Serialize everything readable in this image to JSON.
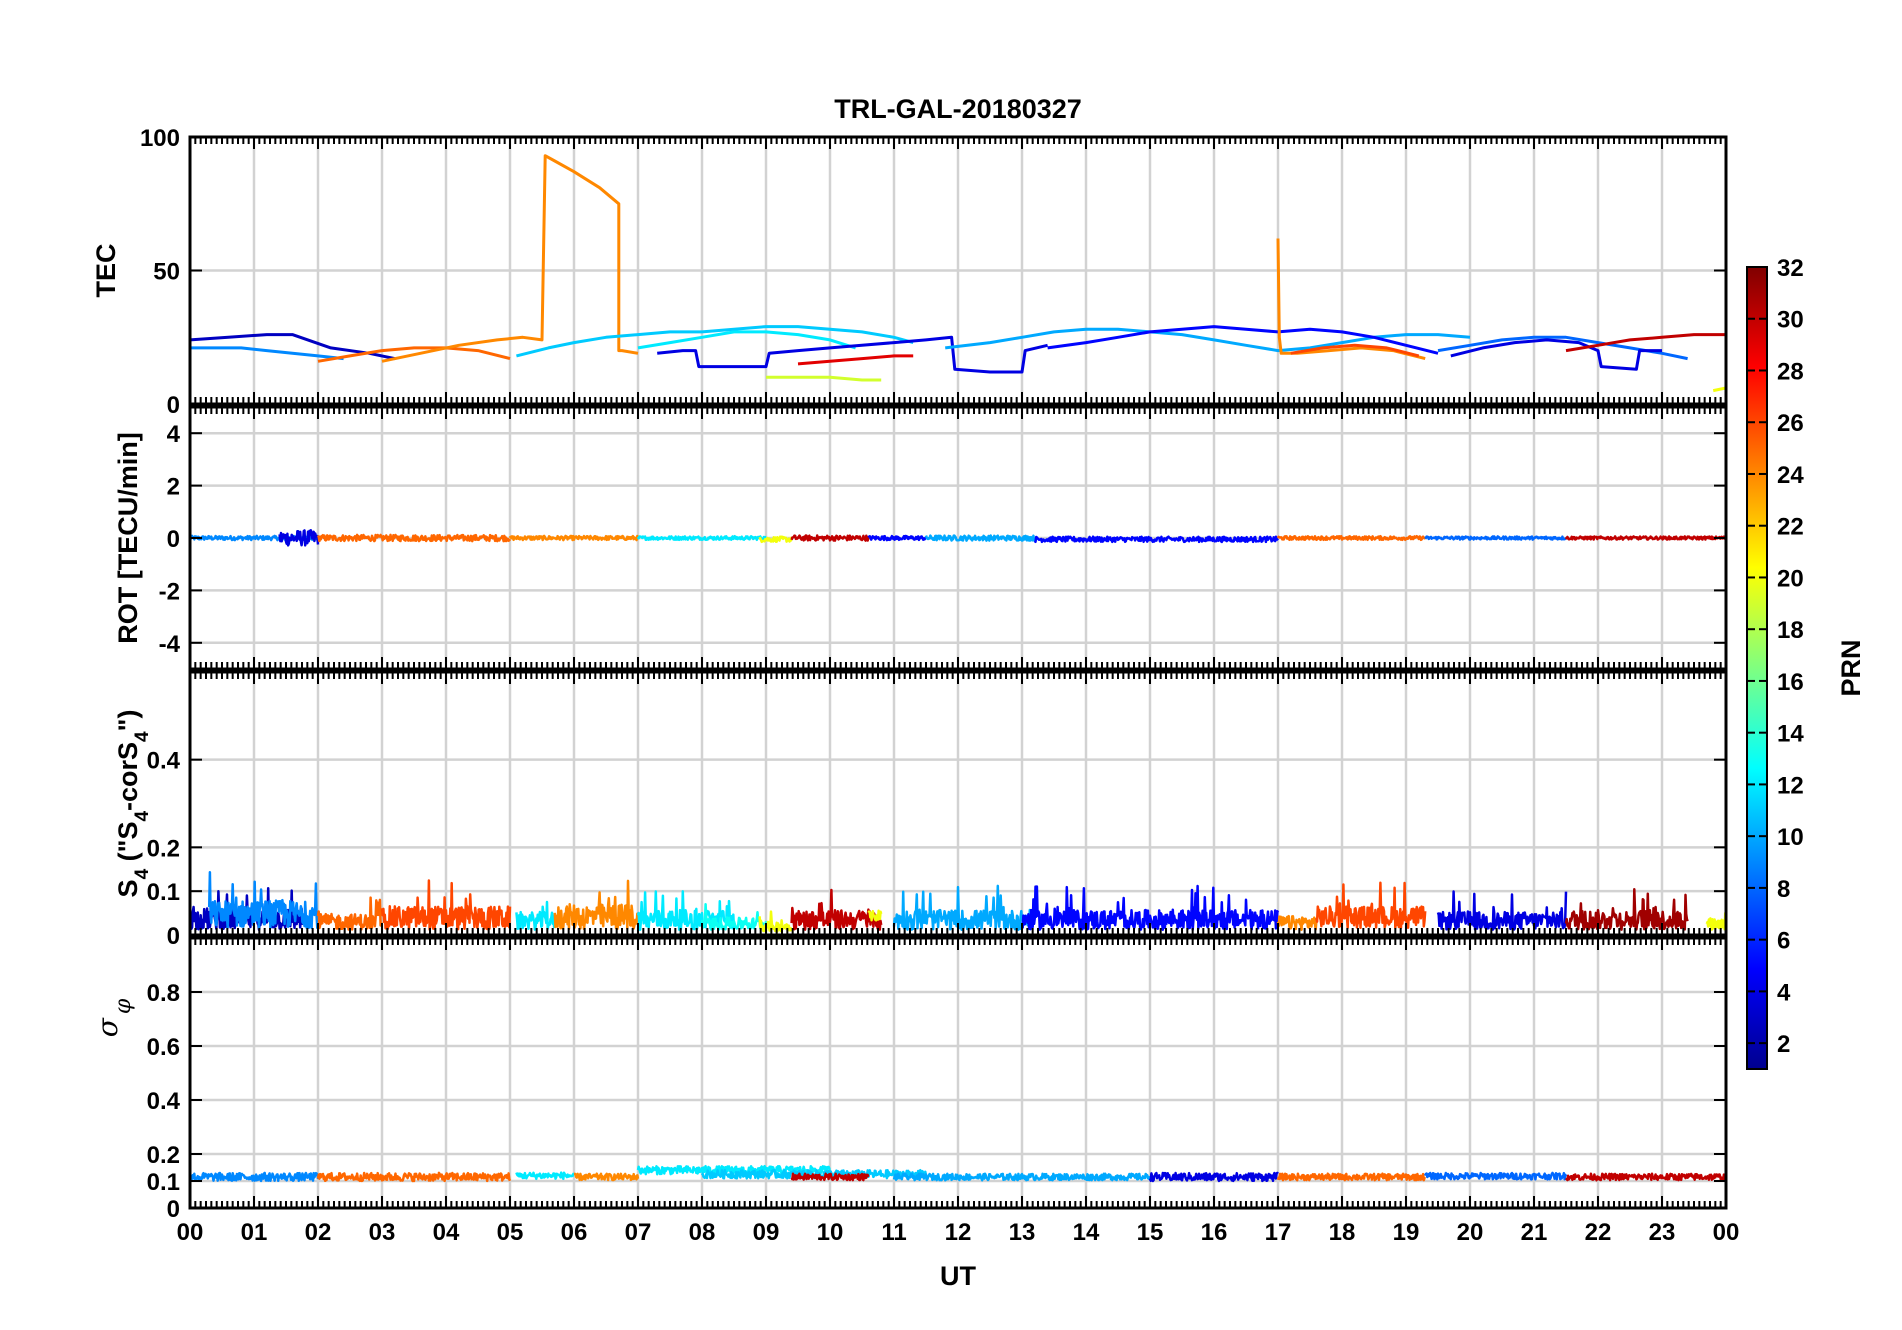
{
  "chart_data": {
    "type": "line",
    "title": "TRL-GAL-20180327",
    "xlabel": "UT",
    "x_ticks": [
      "00",
      "01",
      "02",
      "03",
      "04",
      "05",
      "06",
      "07",
      "08",
      "09",
      "10",
      "11",
      "12",
      "13",
      "14",
      "15",
      "16",
      "17",
      "18",
      "19",
      "20",
      "21",
      "22",
      "23",
      "00"
    ],
    "xlim": [
      0,
      24
    ],
    "colorbar": {
      "label": "PRN",
      "range": [
        1,
        32
      ],
      "ticks": [
        2,
        4,
        6,
        8,
        10,
        12,
        14,
        16,
        18,
        20,
        22,
        24,
        26,
        28,
        30,
        32
      ],
      "colormap": "jet"
    },
    "panels": [
      {
        "id": "tec",
        "ylabel": "TEC",
        "ylim": [
          0,
          100
        ],
        "yticks": [
          0,
          50,
          100
        ],
        "series": [
          {
            "prn": 3,
            "x": [
              0.0,
              0.6,
              1.2,
              1.6,
              2.2,
              2.8,
              3.2
            ],
            "y": [
              24,
              25,
              26,
              26,
              21,
              19,
              17
            ]
          },
          {
            "prn": 9,
            "x": [
              0.0,
              0.4,
              0.8,
              1.2,
              1.6,
              2.0,
              2.4
            ],
            "y": [
              21,
              21,
              21,
              20,
              19,
              18,
              17
            ]
          },
          {
            "prn": 25,
            "x": [
              2.0,
              2.5,
              3.0,
              3.5,
              4.0,
              4.5,
              5.0
            ],
            "y": [
              16,
              18,
              20,
              21,
              21,
              20,
              17
            ]
          },
          {
            "prn": 24,
            "x": [
              3.0,
              3.6,
              4.2,
              4.8,
              5.2,
              5.5,
              5.55,
              5.7,
              6.0,
              6.4,
              6.7,
              6.7,
              6.75,
              7.0
            ],
            "y": [
              16,
              19,
              22,
              24,
              25,
              24,
              93,
              91,
              87,
              81,
              75,
              20,
              20,
              19
            ]
          },
          {
            "prn": 11,
            "x": [
              5.1,
              5.6,
              6.0,
              6.5,
              7.0,
              7.5,
              8.0,
              8.5,
              9.0,
              9.5,
              10.0,
              10.5,
              11.0,
              11.3
            ],
            "y": [
              18,
              21,
              23,
              25,
              26,
              27,
              27,
              28,
              29,
              29,
              28,
              27,
              25,
              23
            ]
          },
          {
            "prn": 12,
            "x": [
              7.0,
              7.5,
              8.0,
              8.5,
              9.0,
              9.5,
              10.0,
              10.4
            ],
            "y": [
              21,
              23,
              25,
              27,
              27,
              26,
              24,
              21
            ]
          },
          {
            "prn": 4,
            "x": [
              7.3,
              7.7,
              7.9,
              7.95,
              8.5,
              9.0,
              9.05,
              9.5,
              10.0,
              10.5,
              11.0,
              11.5,
              11.9,
              11.95,
              12.5,
              13.0,
              13.05,
              13.4
            ],
            "y": [
              19,
              20,
              20,
              14,
              14,
              14,
              19,
              20,
              21,
              22,
              23,
              24,
              25,
              13,
              12,
              12,
              20,
              22
            ]
          },
          {
            "prn": 19,
            "x": [
              9.0,
              9.5,
              10.0,
              10.5,
              10.8
            ],
            "y": [
              10,
              10,
              10,
              9,
              9
            ]
          },
          {
            "prn": 29,
            "x": [
              9.5,
              10.0,
              10.5,
              11.0,
              11.3
            ],
            "y": [
              15,
              16,
              17,
              18,
              18
            ]
          },
          {
            "prn": 10,
            "x": [
              11.8,
              12.5,
              13.0,
              13.5,
              14.0,
              14.5,
              15.0,
              15.5,
              16.0,
              16.5,
              17.0,
              17.5,
              18.0,
              18.5,
              19.0,
              19.5,
              20.0
            ],
            "y": [
              21,
              23,
              25,
              27,
              28,
              28,
              27,
              26,
              24,
              22,
              20,
              21,
              23,
              25,
              26,
              26,
              25
            ]
          },
          {
            "prn": 5,
            "x": [
              13.4,
              14.0,
              14.5,
              15.0,
              15.5,
              16.0,
              16.5,
              17.0,
              17.5,
              18.0,
              18.5,
              19.0,
              19.5
            ],
            "y": [
              21,
              23,
              25,
              27,
              28,
              29,
              28,
              27,
              28,
              27,
              25,
              22,
              19
            ]
          },
          {
            "prn": 24,
            "x": [
              17.0,
              17.02,
              17.05,
              17.3,
              17.8,
              18.3,
              18.8,
              19.3
            ],
            "y": [
              62,
              25,
              19,
              19,
              20,
              21,
              20,
              17
            ]
          },
          {
            "prn": 26,
            "x": [
              17.2,
              17.7,
              18.2,
              18.7,
              19.2
            ],
            "y": [
              19,
              21,
              22,
              21,
              18
            ]
          },
          {
            "prn": 8,
            "x": [
              19.5,
              20.0,
              20.5,
              21.0,
              21.5,
              22.0,
              22.5,
              23.0,
              23.4
            ],
            "y": [
              20,
              22,
              24,
              25,
              25,
              23,
              21,
              19,
              17
            ]
          },
          {
            "prn": 4,
            "x": [
              19.7,
              20.2,
              20.7,
              21.2,
              21.7,
              22.0,
              22.05,
              22.6,
              22.65,
              23.0
            ],
            "y": [
              18,
              21,
              23,
              24,
              23,
              20,
              14,
              13,
              20,
              20
            ]
          },
          {
            "prn": 30,
            "x": [
              21.5,
              22.0,
              22.5,
              23.0,
              23.5,
              24.0
            ],
            "y": [
              20,
              22,
              24,
              25,
              26,
              26
            ]
          },
          {
            "prn": 20,
            "x": [
              23.8,
              24.0
            ],
            "y": [
              5,
              6
            ]
          }
        ]
      },
      {
        "id": "rot",
        "ylabel": "ROT [TECU/min]",
        "ylim": [
          -5,
          5
        ],
        "yticks": [
          -4,
          -2,
          0,
          2,
          4
        ],
        "series": [
          {
            "prn": 9,
            "x0": 0.0,
            "x1": 2.0,
            "base": 0.0,
            "amp": 0.08
          },
          {
            "prn": 4,
            "x0": 1.4,
            "x1": 2.0,
            "base": 0.0,
            "amp": 0.3
          },
          {
            "prn": 25,
            "x0": 2.0,
            "x1": 5.0,
            "base": 0.0,
            "amp": 0.12
          },
          {
            "prn": 24,
            "x0": 5.0,
            "x1": 7.0,
            "base": 0.0,
            "amp": 0.08
          },
          {
            "prn": 12,
            "x0": 7.0,
            "x1": 9.0,
            "base": 0.0,
            "amp": 0.07
          },
          {
            "prn": 20,
            "x0": 8.9,
            "x1": 9.4,
            "base": -0.05,
            "amp": 0.1
          },
          {
            "prn": 30,
            "x0": 9.4,
            "x1": 10.6,
            "base": 0.0,
            "amp": 0.1
          },
          {
            "prn": 5,
            "x0": 10.6,
            "x1": 11.5,
            "base": 0.0,
            "amp": 0.08
          },
          {
            "prn": 10,
            "x0": 11.5,
            "x1": 13.2,
            "base": 0.0,
            "amp": 0.1
          },
          {
            "prn": 5,
            "x0": 13.2,
            "x1": 17.0,
            "base": -0.05,
            "amp": 0.1
          },
          {
            "prn": 25,
            "x0": 17.0,
            "x1": 19.3,
            "base": 0.0,
            "amp": 0.07
          },
          {
            "prn": 8,
            "x0": 19.3,
            "x1": 21.5,
            "base": 0.0,
            "amp": 0.06
          },
          {
            "prn": 30,
            "x0": 21.5,
            "x1": 24.0,
            "base": 0.0,
            "amp": 0.06
          }
        ]
      },
      {
        "id": "s4",
        "ylabel": "S4 (\"S4-corS4\")",
        "ylim": [
          0,
          0.6
        ],
        "yticks": [
          0,
          0.1,
          0.2,
          0.4
        ],
        "series": [
          {
            "prn": 3,
            "x0": 0.0,
            "x1": 1.8,
            "base": 0.03,
            "amp": 0.11
          },
          {
            "prn": 9,
            "x0": 0.3,
            "x1": 2.0,
            "base": 0.04,
            "amp": 0.14
          },
          {
            "prn": 25,
            "x0": 2.0,
            "x1": 3.0,
            "base": 0.03,
            "amp": 0.08
          },
          {
            "prn": 26,
            "x0": 3.0,
            "x1": 5.0,
            "base": 0.03,
            "amp": 0.12
          },
          {
            "prn": 12,
            "x0": 5.1,
            "x1": 5.7,
            "base": 0.03,
            "amp": 0.09
          },
          {
            "prn": 24,
            "x0": 5.7,
            "x1": 7.0,
            "base": 0.03,
            "amp": 0.13
          },
          {
            "prn": 12,
            "x0": 7.0,
            "x1": 8.5,
            "base": 0.03,
            "amp": 0.1
          },
          {
            "prn": 13,
            "x0": 8.0,
            "x1": 9.0,
            "base": 0.03,
            "amp": 0.06
          },
          {
            "prn": 20,
            "x0": 8.9,
            "x1": 9.4,
            "base": 0.02,
            "amp": 0.05
          },
          {
            "prn": 30,
            "x0": 9.4,
            "x1": 10.8,
            "base": 0.03,
            "amp": 0.1
          },
          {
            "prn": 20,
            "x0": 10.6,
            "x1": 10.8,
            "base": 0.08,
            "amp": 0.05
          },
          {
            "prn": 10,
            "x0": 11.0,
            "x1": 13.2,
            "base": 0.03,
            "amp": 0.1
          },
          {
            "prn": 5,
            "x0": 13.0,
            "x1": 17.0,
            "base": 0.03,
            "amp": 0.1
          },
          {
            "prn": 24,
            "x0": 17.0,
            "x1": 17.6,
            "base": 0.03,
            "amp": 0.07
          },
          {
            "prn": 26,
            "x0": 17.6,
            "x1": 19.3,
            "base": 0.04,
            "amp": 0.11
          },
          {
            "prn": 4,
            "x0": 19.5,
            "x1": 21.5,
            "base": 0.03,
            "amp": 0.09
          },
          {
            "prn": 31,
            "x0": 21.5,
            "x1": 23.4,
            "base": 0.03,
            "amp": 0.1
          },
          {
            "prn": 20,
            "x0": 23.7,
            "x1": 24.0,
            "base": 0.03,
            "amp": 0.06
          }
        ]
      },
      {
        "id": "sigma",
        "ylabel": "σ φ",
        "ylim": [
          0,
          1
        ],
        "yticks": [
          0,
          0.1,
          0.2,
          0.4,
          0.6,
          0.8
        ],
        "series": [
          {
            "prn": 9,
            "x0": 0.0,
            "x1": 2.0,
            "base": 0.115,
            "amp": 0.015
          },
          {
            "prn": 25,
            "x0": 2.0,
            "x1": 5.0,
            "base": 0.115,
            "amp": 0.015
          },
          {
            "prn": 12,
            "x0": 5.1,
            "x1": 6.0,
            "base": 0.12,
            "amp": 0.012
          },
          {
            "prn": 24,
            "x0": 6.0,
            "x1": 7.0,
            "base": 0.115,
            "amp": 0.012
          },
          {
            "prn": 12,
            "x0": 7.0,
            "x1": 10.0,
            "base": 0.14,
            "amp": 0.015
          },
          {
            "prn": 11,
            "x0": 8.0,
            "x1": 11.5,
            "base": 0.125,
            "amp": 0.015
          },
          {
            "prn": 30,
            "x0": 9.4,
            "x1": 10.6,
            "base": 0.115,
            "amp": 0.012
          },
          {
            "prn": 10,
            "x0": 11.0,
            "x1": 15.0,
            "base": 0.115,
            "amp": 0.012
          },
          {
            "prn": 4,
            "x0": 15.0,
            "x1": 17.0,
            "base": 0.115,
            "amp": 0.015
          },
          {
            "prn": 25,
            "x0": 17.0,
            "x1": 19.3,
            "base": 0.115,
            "amp": 0.012
          },
          {
            "prn": 8,
            "x0": 19.3,
            "x1": 21.5,
            "base": 0.118,
            "amp": 0.012
          },
          {
            "prn": 30,
            "x0": 21.5,
            "x1": 24.0,
            "base": 0.115,
            "amp": 0.012
          }
        ]
      }
    ]
  }
}
